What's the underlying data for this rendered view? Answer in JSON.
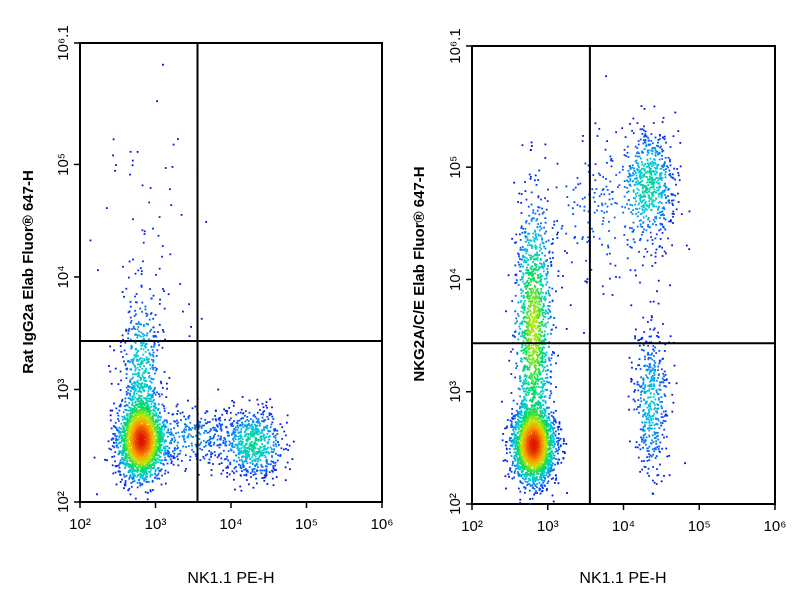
{
  "chart_data": [
    {
      "type": "scatter",
      "xlabel": "NK1.1 PE-H",
      "ylabel": "Rat IgG2a Elab Fluor® 647-H",
      "x_scale": "log",
      "y_scale": "log",
      "xlim": [
        100,
        1000000
      ],
      "ylim": [
        100,
        1200000
      ],
      "x_ticks": [
        "10²",
        "10³",
        "10⁴",
        "10⁵",
        "10⁶"
      ],
      "y_ticks": [
        "10²",
        "10³",
        "10⁴",
        "10⁵",
        "10⁶.1"
      ],
      "gate": {
        "x": 3600,
        "y": 2700
      },
      "populations": [
        {
          "cx": 650,
          "cy": 350,
          "sx": 0.15,
          "sy": 0.17,
          "n": 2400
        },
        {
          "cx": 650,
          "cy": 1500,
          "sx": 0.13,
          "sy": 0.35,
          "n": 500
        },
        {
          "cx": 3000,
          "cy": 380,
          "sx": 0.28,
          "sy": 0.14,
          "n": 300
        },
        {
          "cx": 20000,
          "cy": 330,
          "sx": 0.2,
          "sy": 0.15,
          "n": 650
        },
        {
          "cx": 900,
          "cy": 25000,
          "sx": 0.35,
          "sy": 0.5,
          "n": 60
        }
      ]
    },
    {
      "type": "scatter",
      "xlabel": "NK1.1 PE-H",
      "ylabel": "NKG2A/C/E Elab Fluor® 647-H",
      "x_scale": "log",
      "y_scale": "log",
      "xlim": [
        100,
        1000000
      ],
      "ylim": [
        100,
        1200000
      ],
      "x_ticks": [
        "10²",
        "10³",
        "10⁴",
        "10⁵",
        "10⁶"
      ],
      "y_ticks": [
        "10²",
        "10³",
        "10⁴",
        "10⁵",
        "10⁶.1"
      ],
      "gate": {
        "x": 3600,
        "y": 2700
      },
      "populations": [
        {
          "cx": 650,
          "cy": 330,
          "sx": 0.14,
          "sy": 0.16,
          "n": 2400
        },
        {
          "cx": 650,
          "cy": 3500,
          "sx": 0.12,
          "sy": 0.55,
          "n": 1300
        },
        {
          "cx": 22000,
          "cy": 70000,
          "sx": 0.17,
          "sy": 0.25,
          "n": 600
        },
        {
          "cx": 23000,
          "cy": 800,
          "sx": 0.12,
          "sy": 0.35,
          "n": 450
        },
        {
          "cx": 5000,
          "cy": 40000,
          "sx": 0.4,
          "sy": 0.4,
          "n": 200
        }
      ]
    }
  ]
}
